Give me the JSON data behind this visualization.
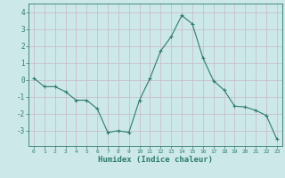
{
  "x": [
    0,
    1,
    2,
    3,
    4,
    5,
    6,
    7,
    8,
    9,
    10,
    11,
    12,
    13,
    14,
    15,
    16,
    17,
    18,
    19,
    20,
    21,
    22,
    23
  ],
  "y": [
    0.1,
    -0.4,
    -0.4,
    -0.7,
    -1.2,
    -1.2,
    -1.7,
    -3.1,
    -3.0,
    -3.1,
    -1.2,
    0.1,
    1.7,
    2.55,
    3.8,
    3.3,
    1.3,
    -0.05,
    -0.6,
    -1.55,
    -1.6,
    -1.8,
    -2.1,
    -3.5
  ],
  "title": "",
  "xlabel": "Humidex (Indice chaleur)",
  "ylabel": "",
  "xlim": [
    -0.5,
    23.5
  ],
  "ylim": [
    -3.9,
    4.5
  ],
  "yticks": [
    -3,
    -2,
    -1,
    0,
    1,
    2,
    3,
    4
  ],
  "xticks": [
    0,
    1,
    2,
    3,
    4,
    5,
    6,
    7,
    8,
    9,
    10,
    11,
    12,
    13,
    14,
    15,
    16,
    17,
    18,
    19,
    20,
    21,
    22,
    23
  ],
  "line_color": "#2e7b6e",
  "marker": "+",
  "bg_color": "#cce8e8",
  "grid_color": "#c8b8c8",
  "axis_color": "#2e7b6e",
  "tick_label_color": "#2e7b6e",
  "xlabel_color": "#2e7b6e"
}
